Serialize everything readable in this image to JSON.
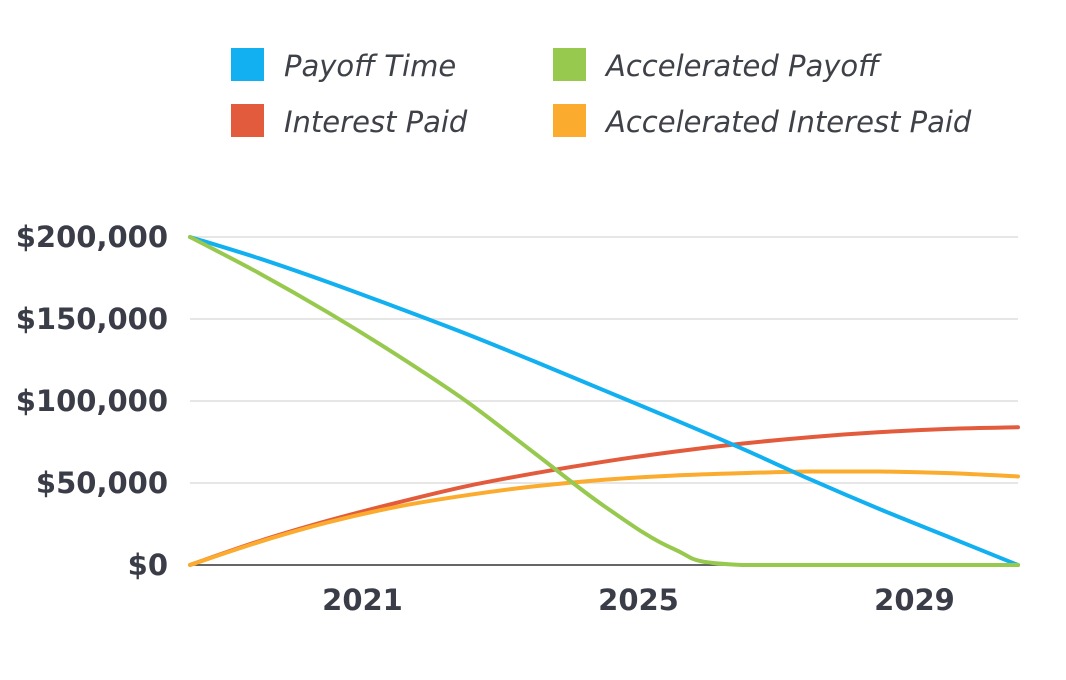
{
  "chart_data": {
    "type": "line",
    "x_ticks": [
      {
        "x": 2021,
        "label": "2021"
      },
      {
        "x": 2025,
        "label": "2025"
      },
      {
        "x": 2029,
        "label": "2029"
      }
    ],
    "xlim": [
      2018.5,
      2030.5
    ],
    "ylim": [
      0,
      200000
    ],
    "y_ticks": [
      {
        "value": 0,
        "label": "$0"
      },
      {
        "value": 50000,
        "label": "$50,000"
      },
      {
        "value": 100000,
        "label": "$100,000"
      },
      {
        "value": 150000,
        "label": "$150,000"
      },
      {
        "value": 200000,
        "label": "$200,000"
      }
    ],
    "grid": true,
    "legend_position": "top",
    "series": [
      {
        "name": "Payoff Time",
        "color": "#12b0f0",
        "x": [
          2018.5,
          2019.5,
          2020.5,
          2021.5,
          2022.5,
          2023.5,
          2024.5,
          2025.5,
          2026.5,
          2027.5,
          2028.5,
          2029.5,
          2030.5
        ],
        "y": [
          200000,
          187000,
          172500,
          157000,
          141000,
          124000,
          106500,
          89000,
          71000,
          52000,
          34000,
          17000,
          0
        ]
      },
      {
        "name": "Interest Paid",
        "color": "#e35b3d",
        "x": [
          2018.5,
          2019.5,
          2020.5,
          2021.5,
          2022.5,
          2023.5,
          2024.5,
          2025.5,
          2026.5,
          2027.5,
          2028.5,
          2029.5,
          2030.5
        ],
        "y": [
          0,
          14500,
          27000,
          38000,
          48000,
          56000,
          63000,
          69000,
          74000,
          78000,
          81000,
          83000,
          84000
        ]
      },
      {
        "name": "Accelerated Payoff",
        "color": "#97c94e",
        "x": [
          2018.5,
          2019.5,
          2020.5,
          2021.5,
          2022.5,
          2023.5,
          2024.5,
          2025.5,
          2026.5,
          2030.5
        ],
        "y": [
          200000,
          178000,
          154000,
          128000,
          100000,
          68000,
          36000,
          10000,
          0,
          0
        ]
      },
      {
        "name": "Accelerated Interest Paid",
        "color": "#fbab2d",
        "x": [
          2018.5,
          2019.5,
          2020.5,
          2021.5,
          2022.5,
          2023.5,
          2024.5,
          2025.5,
          2026.5,
          2027.5,
          2028.5,
          2029.5,
          2030.5
        ],
        "y": [
          0,
          14000,
          26000,
          35500,
          42500,
          48000,
          52000,
          54500,
          56000,
          57000,
          57000,
          56000,
          54000
        ]
      }
    ]
  }
}
